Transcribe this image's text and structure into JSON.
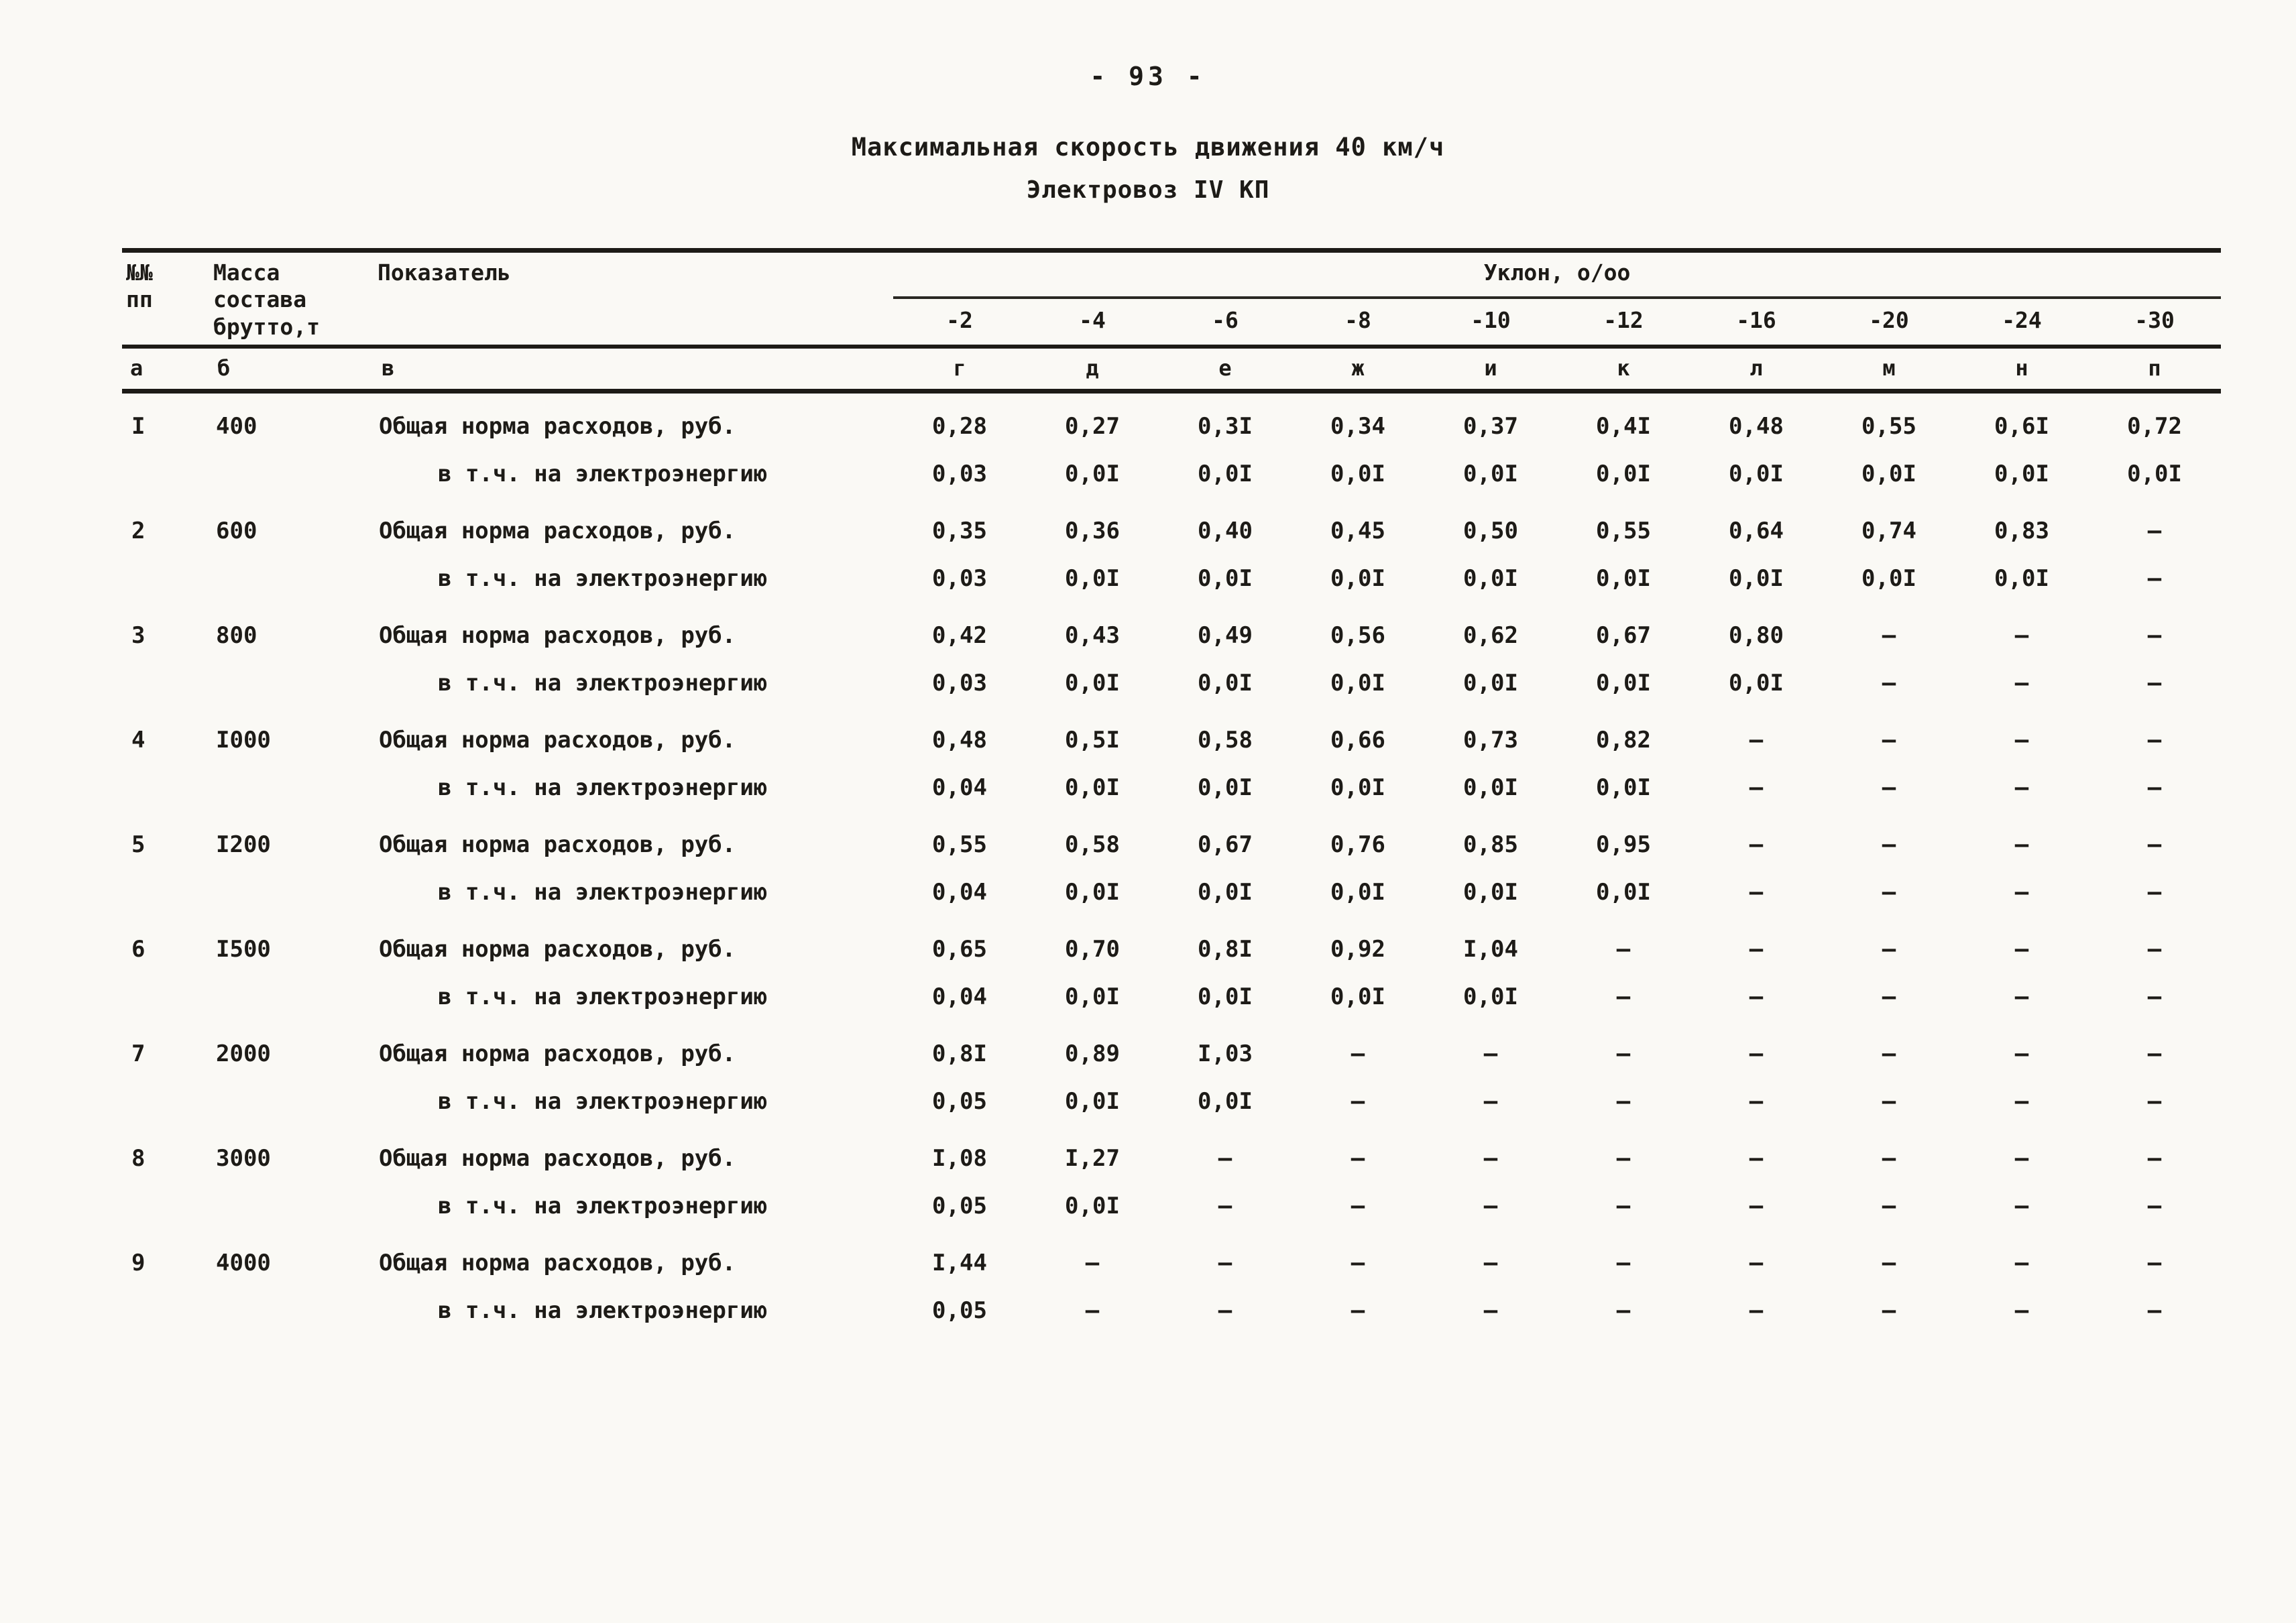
{
  "page": {
    "number": "- 93 -"
  },
  "title": {
    "line1": "Максимальная скорость движения 40 км/ч",
    "line2": "Электровоз IV КП"
  },
  "table": {
    "headers": {
      "num": "№№\nпп",
      "mass": "Масса\nсостава\nбрутто,т",
      "indicator": "Показатель",
      "slope_group": "Уклон, о/оо",
      "slopes": [
        "-2",
        "-4",
        "-6",
        "-8",
        "-10",
        "-12",
        "-16",
        "-20",
        "-24",
        "-30"
      ]
    },
    "letter_row": [
      "а",
      "б",
      "в",
      "г",
      "д",
      "е",
      "ж",
      "и",
      "к",
      "л",
      "м",
      "н",
      "п"
    ],
    "labels": {
      "total": "Общая норма расходов, руб.",
      "sub": "в т.ч. на электроэнергию"
    },
    "rows": [
      {
        "num": "I",
        "mass": "400",
        "lines": [
          {
            "label": "Общая норма расходов, руб.",
            "values": [
              "0,28",
              "0,27",
              "0,3I",
              "0,34",
              "0,37",
              "0,4I",
              "0,48",
              "0,55",
              "0,6I",
              "0,72"
            ]
          },
          {
            "label": "в т.ч. на электроэнергию",
            "values": [
              "0,03",
              "0,0I",
              "0,0I",
              "0,0I",
              "0,0I",
              "0,0I",
              "0,0I",
              "0,0I",
              "0,0I",
              "0,0I"
            ]
          }
        ]
      },
      {
        "num": "2",
        "mass": "600",
        "lines": [
          {
            "label": "Общая норма расходов, руб.",
            "values": [
              "0,35",
              "0,36",
              "0,40",
              "0,45",
              "0,50",
              "0,55",
              "0,64",
              "0,74",
              "0,83",
              "–"
            ]
          },
          {
            "label": "в т.ч. на электроэнергию",
            "values": [
              "0,03",
              "0,0I",
              "0,0I",
              "0,0I",
              "0,0I",
              "0,0I",
              "0,0I",
              "0,0I",
              "0,0I",
              "–"
            ]
          }
        ]
      },
      {
        "num": "3",
        "mass": "800",
        "lines": [
          {
            "label": "Общая норма расходов, руб.",
            "values": [
              "0,42",
              "0,43",
              "0,49",
              "0,56",
              "0,62",
              "0,67",
              "0,80",
              "–",
              "–",
              "–"
            ]
          },
          {
            "label": "в т.ч. на электроэнергию",
            "values": [
              "0,03",
              "0,0I",
              "0,0I",
              "0,0I",
              "0,0I",
              "0,0I",
              "0,0I",
              "–",
              "–",
              "–"
            ]
          }
        ]
      },
      {
        "num": "4",
        "mass": "I000",
        "lines": [
          {
            "label": "Общая норма расходов, руб.",
            "values": [
              "0,48",
              "0,5I",
              "0,58",
              "0,66",
              "0,73",
              "0,82",
              "–",
              "–",
              "–",
              "–"
            ]
          },
          {
            "label": "в т.ч. на электроэнергию",
            "values": [
              "0,04",
              "0,0I",
              "0,0I",
              "0,0I",
              "0,0I",
              "0,0I",
              "–",
              "–",
              "–",
              "–"
            ]
          }
        ]
      },
      {
        "num": "5",
        "mass": "I200",
        "lines": [
          {
            "label": "Общая норма расходов, руб.",
            "values": [
              "0,55",
              "0,58",
              "0,67",
              "0,76",
              "0,85",
              "0,95",
              "–",
              "–",
              "–",
              "–"
            ]
          },
          {
            "label": "в т.ч. на электроэнергию",
            "values": [
              "0,04",
              "0,0I",
              "0,0I",
              "0,0I",
              "0,0I",
              "0,0I",
              "–",
              "–",
              "–",
              "–"
            ]
          }
        ]
      },
      {
        "num": "6",
        "mass": "I500",
        "lines": [
          {
            "label": "Общая норма расходов, руб.",
            "values": [
              "0,65",
              "0,70",
              "0,8I",
              "0,92",
              "I,04",
              "–",
              "–",
              "–",
              "–",
              "–"
            ]
          },
          {
            "label": "в т.ч. на электроэнергию",
            "values": [
              "0,04",
              "0,0I",
              "0,0I",
              "0,0I",
              "0,0I",
              "–",
              "–",
              "–",
              "–",
              "–"
            ]
          }
        ]
      },
      {
        "num": "7",
        "mass": "2000",
        "lines": [
          {
            "label": "Общая норма расходов, руб.",
            "values": [
              "0,8I",
              "0,89",
              "I,03",
              "–",
              "–",
              "–",
              "–",
              "–",
              "–",
              "–"
            ]
          },
          {
            "label": "в т.ч. на электроэнергию",
            "values": [
              "0,05",
              "0,0I",
              "0,0I",
              "–",
              "–",
              "–",
              "–",
              "–",
              "–",
              "–"
            ]
          }
        ]
      },
      {
        "num": "8",
        "mass": "3000",
        "lines": [
          {
            "label": "Общая норма расходов, руб.",
            "values": [
              "I,08",
              "I,27",
              "–",
              "–",
              "–",
              "–",
              "–",
              "–",
              "–",
              "–"
            ]
          },
          {
            "label": "в т.ч. на электроэнергию",
            "values": [
              "0,05",
              "0,0I",
              "–",
              "–",
              "–",
              "–",
              "–",
              "–",
              "–",
              "–"
            ]
          }
        ]
      },
      {
        "num": "9",
        "mass": "4000",
        "lines": [
          {
            "label": "Общая норма расходов, руб.",
            "values": [
              "I,44",
              "–",
              "–",
              "–",
              "–",
              "–",
              "–",
              "–",
              "–",
              "–"
            ]
          },
          {
            "label": "в т.ч. на электроэнергию",
            "values": [
              "0,05",
              "–",
              "–",
              "–",
              "–",
              "–",
              "–",
              "–",
              "–",
              "–"
            ]
          }
        ]
      }
    ]
  }
}
